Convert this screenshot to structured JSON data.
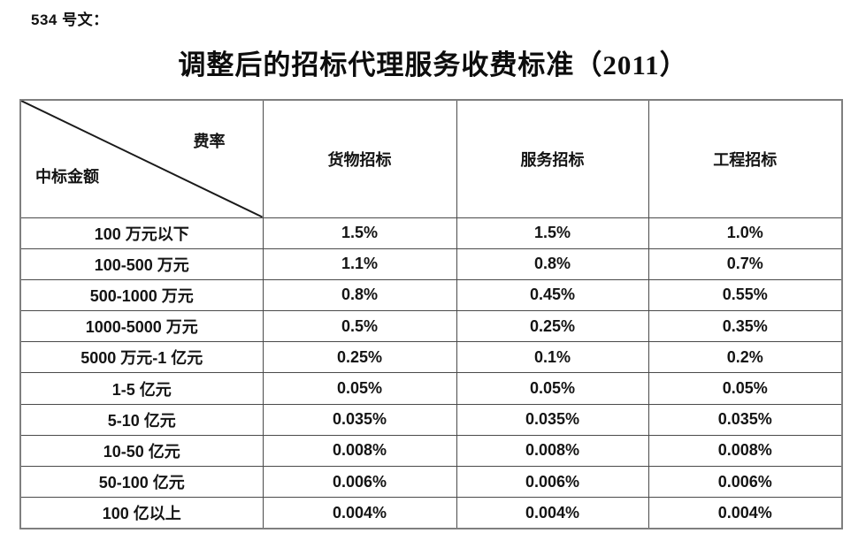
{
  "doc_label": "534 号文：",
  "title": "调整后的招标代理服务收费标准（2011）",
  "table": {
    "corner": {
      "top_right": "费率",
      "bottom_left": "中标金额"
    },
    "columns": [
      "货物招标",
      "服务招标",
      "工程招标"
    ],
    "rows": [
      {
        "label": "100 万元以下",
        "values": [
          "1.5%",
          "1.5%",
          "1.0%"
        ]
      },
      {
        "label": "100-500 万元",
        "values": [
          "1.1%",
          "0.8%",
          "0.7%"
        ]
      },
      {
        "label": "500-1000 万元",
        "values": [
          "0.8%",
          "0.45%",
          "0.55%"
        ]
      },
      {
        "label": "1000-5000 万元",
        "values": [
          "0.5%",
          "0.25%",
          "0.35%"
        ]
      },
      {
        "label": "5000 万元-1 亿元",
        "values": [
          "0.25%",
          "0.1%",
          "0.2%"
        ]
      },
      {
        "label": "1-5 亿元",
        "values": [
          "0.05%",
          "0.05%",
          "0.05%"
        ]
      },
      {
        "label": "5-10 亿元",
        "values": [
          "0.035%",
          "0.035%",
          "0.035%"
        ]
      },
      {
        "label": "10-50 亿元",
        "values": [
          "0.008%",
          "0.008%",
          "0.008%"
        ]
      },
      {
        "label": "50-100 亿元",
        "values": [
          "0.006%",
          "0.006%",
          "0.006%"
        ]
      },
      {
        "label": "100 亿以上",
        "values": [
          "0.004%",
          "0.004%",
          "0.004%"
        ]
      }
    ]
  },
  "colors": {
    "text": "#141414",
    "inner_border": "#4a4a4a",
    "outer_border": "#7f7f7f",
    "background": "#ffffff"
  }
}
